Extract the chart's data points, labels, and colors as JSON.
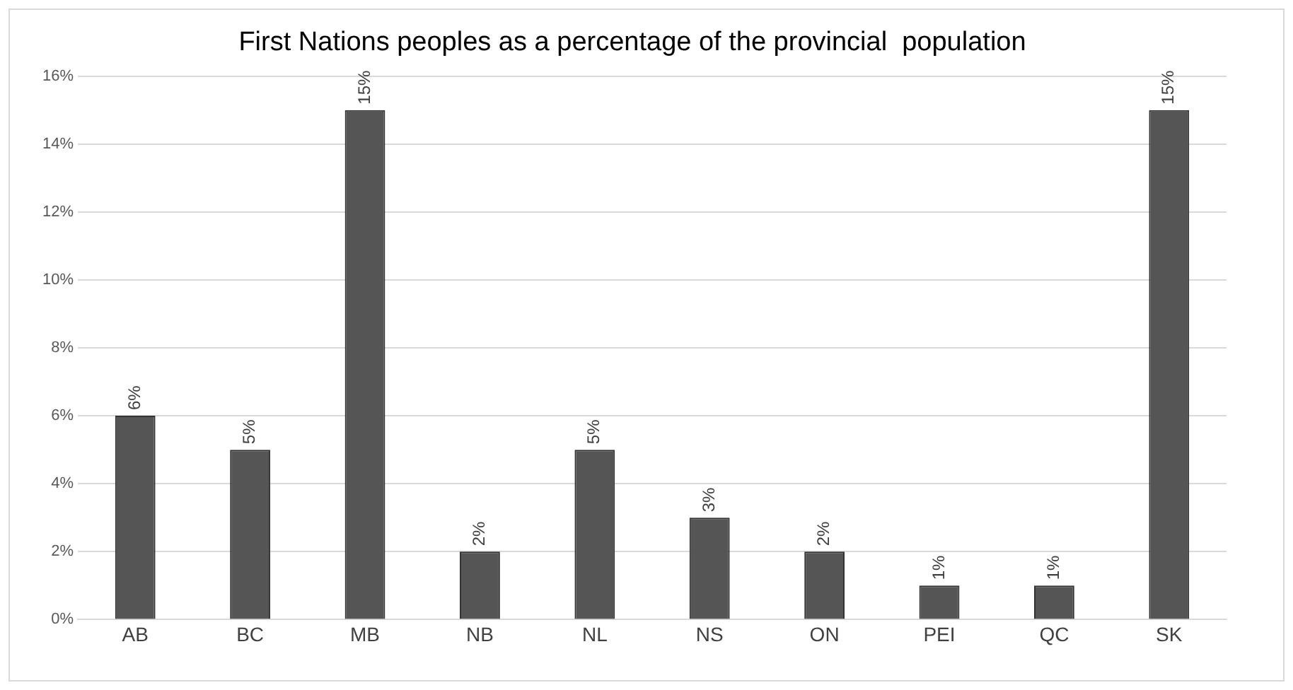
{
  "chart_data": {
    "type": "bar",
    "title": "First Nations peoples as a percentage of the provincial  population",
    "categories": [
      "AB",
      "BC",
      "MB",
      "NB",
      "NL",
      "NS",
      "ON",
      "PEI",
      "QC",
      "SK"
    ],
    "values": [
      6,
      5,
      15,
      2,
      5,
      3,
      2,
      1,
      1,
      15
    ],
    "value_labels": [
      "6%",
      "5%",
      "15%",
      "2%",
      "5%",
      "3%",
      "2%",
      "1%",
      "1%",
      "15%"
    ],
    "color": "#555555",
    "ylim": [
      0,
      16
    ],
    "yticks": [
      {
        "value": 0,
        "label": "0%"
      },
      {
        "value": 2,
        "label": "2%"
      },
      {
        "value": 4,
        "label": "4%"
      },
      {
        "value": 6,
        "label": "6%"
      },
      {
        "value": 8,
        "label": "8%"
      },
      {
        "value": 10,
        "label": "10%"
      },
      {
        "value": 12,
        "label": "12%"
      },
      {
        "value": 14,
        "label": "14%"
      },
      {
        "value": 16,
        "label": "16%"
      }
    ],
    "grid": "y"
  }
}
